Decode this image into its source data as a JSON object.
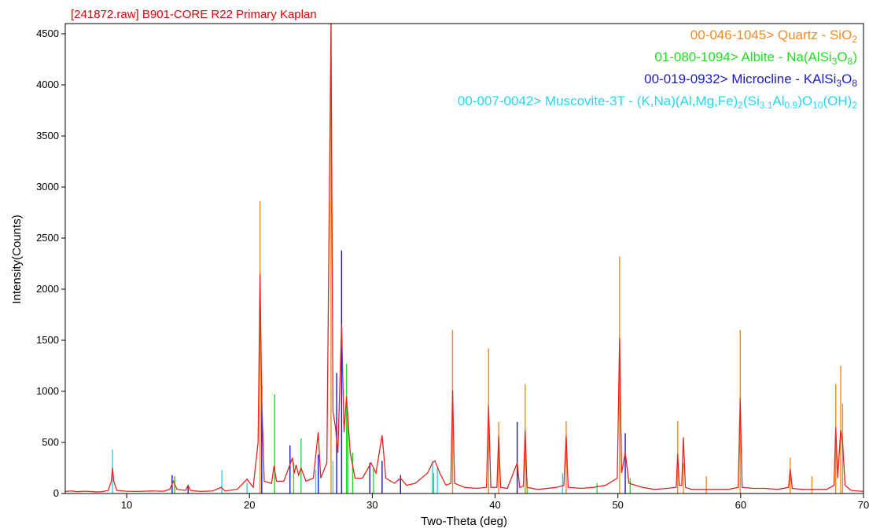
{
  "chart_data": {
    "type": "line",
    "title": "[241872.raw] B901-CORE R22 Primary Kaplan",
    "title_color": "#e00000",
    "x_label": "Two-Theta (deg)",
    "y_label": "Intensity(Counts)",
    "xlim": [
      5,
      70
    ],
    "ylim": [
      0,
      4600
    ],
    "xticks": [
      10,
      20,
      30,
      40,
      50,
      60,
      70
    ],
    "yticks": [
      0,
      500,
      1000,
      1500,
      2000,
      2500,
      3000,
      3500,
      4000,
      4500
    ],
    "series": [
      {
        "style": "line",
        "color": "#e8231e",
        "x": [
          5,
          5.5,
          6,
          6.5,
          7,
          7.5,
          8,
          8.5,
          8.75,
          8.85,
          8.95,
          9.2,
          10,
          11,
          12,
          13,
          13.5,
          13.8,
          14.1,
          14.8,
          15,
          15.2,
          16,
          17,
          17.7,
          18,
          19,
          19.8,
          20.3,
          20.7,
          20.86,
          21.0,
          21.2,
          21.8,
          22.0,
          22.2,
          22.8,
          23.5,
          23.65,
          23.8,
          24.0,
          24.2,
          24.6,
          25.2,
          25.6,
          25.8,
          26.3,
          26.64,
          26.8,
          27.0,
          27.2,
          27.5,
          27.7,
          27.9,
          28.2,
          28.6,
          29.2,
          29.9,
          30.3,
          30.8,
          31.1,
          31.8,
          32.3,
          32.8,
          33.5,
          34.5,
          34.9,
          35.1,
          35.5,
          36.0,
          36.4,
          36.54,
          36.7,
          37.5,
          38.5,
          39.3,
          39.47,
          39.65,
          40.15,
          40.29,
          40.45,
          41,
          41.8,
          42,
          42.3,
          42.45,
          42.6,
          43.5,
          45,
          45.6,
          45.79,
          45.95,
          47,
          48,
          49,
          49.95,
          50.14,
          50.3,
          50.6,
          50.9,
          52,
          53,
          54,
          54.75,
          54.87,
          55.0,
          55.2,
          55.33,
          55.5,
          56,
          57,
          58,
          59,
          59.8,
          59.96,
          60.12,
          61,
          62,
          63,
          63.9,
          64.03,
          64.2,
          65,
          66,
          67,
          67.6,
          67.74,
          67.9,
          68.14,
          68.3,
          68.5,
          69,
          70
        ],
        "values": [
          20,
          25,
          18,
          22,
          20,
          15,
          18,
          30,
          120,
          250,
          120,
          30,
          22,
          20,
          25,
          22,
          40,
          120,
          40,
          30,
          80,
          30,
          20,
          25,
          60,
          25,
          40,
          140,
          60,
          500,
          2150,
          900,
          120,
          100,
          270,
          120,
          120,
          350,
          200,
          280,
          180,
          250,
          120,
          150,
          600,
          150,
          300,
          4600,
          800,
          650,
          400,
          1650,
          600,
          950,
          400,
          150,
          150,
          300,
          200,
          570,
          150,
          100,
          150,
          80,
          100,
          200,
          300,
          320,
          200,
          80,
          100,
          1010,
          100,
          60,
          50,
          60,
          860,
          60,
          60,
          560,
          60,
          50,
          300,
          60,
          70,
          620,
          60,
          40,
          60,
          80,
          560,
          60,
          50,
          60,
          80,
          150,
          1520,
          200,
          400,
          100,
          60,
          40,
          50,
          60,
          390,
          80,
          80,
          550,
          60,
          40,
          40,
          40,
          40,
          60,
          930,
          60,
          50,
          50,
          40,
          60,
          240,
          50,
          40,
          40,
          40,
          80,
          650,
          150,
          620,
          500,
          80,
          30,
          20
        ]
      },
      {
        "style": "stick",
        "color": "#f28a1e",
        "name": [
          {
            "text": "00-046-1045> Quartz - SiO",
            "sub": false
          },
          {
            "text": "2",
            "sub": true
          }
        ],
        "x": [
          20.86,
          26.64,
          36.54,
          39.47,
          40.29,
          42.45,
          45.79,
          50.14,
          54.87,
          55.33,
          57.2,
          59.96,
          64.03,
          65.8,
          67.74,
          68.14,
          68.3
        ],
        "values": [
          2860,
          4600,
          1600,
          1420,
          700,
          1070,
          710,
          2320,
          710,
          300,
          170,
          1600,
          350,
          170,
          1070,
          1250,
          880
        ]
      },
      {
        "style": "stick",
        "color": "#22dd22",
        "name": [
          {
            "text": "01-080-1094> Albite - Na(AlSi",
            "sub": false
          },
          {
            "text": "3",
            "sub": true
          },
          {
            "text": "O",
            "sub": false
          },
          {
            "text": "8",
            "sub": true
          },
          {
            "text": ")",
            "sub": false
          }
        ],
        "x": [
          13.9,
          22.05,
          23.6,
          24.2,
          27.9,
          28.0,
          28.4,
          30.1,
          35.0,
          42.6,
          48.3,
          51.0
        ],
        "values": [
          170,
          970,
          300,
          540,
          1270,
          800,
          400,
          250,
          200,
          150,
          100,
          150
        ]
      },
      {
        "style": "stick",
        "color": "#1a1acc",
        "name": [
          {
            "text": "00-019-0932> Microcline - KAlSi",
            "sub": false
          },
          {
            "text": "3",
            "sub": true
          },
          {
            "text": "O",
            "sub": false
          },
          {
            "text": "8",
            "sub": true
          }
        ],
        "x": [
          13.7,
          15.0,
          21.0,
          23.3,
          25.6,
          27.1,
          27.5,
          29.8,
          30.8,
          32.3,
          41.8,
          50.6
        ],
        "values": [
          180,
          80,
          1060,
          470,
          380,
          1180,
          2380,
          300,
          320,
          180,
          700,
          590
        ]
      },
      {
        "style": "stick",
        "color": "#22d8ee",
        "name": [
          {
            "text": "00-007-0042> Muscovite-3T - (K,Na)(Al,Mg,Fe)",
            "sub": false
          },
          {
            "text": "2",
            "sub": true
          },
          {
            "text": "(Si",
            "sub": false
          },
          {
            "text": "3.1",
            "sub": true
          },
          {
            "text": "Al",
            "sub": false
          },
          {
            "text": "0.9",
            "sub": true
          },
          {
            "text": ")O",
            "sub": false
          },
          {
            "text": "10",
            "sub": true
          },
          {
            "text": "(OH)",
            "sub": false
          },
          {
            "text": "2",
            "sub": true
          }
        ],
        "x": [
          8.85,
          17.75,
          19.8,
          25.4,
          26.8,
          34.9,
          35.3,
          45.5
        ],
        "values": [
          430,
          230,
          100,
          230,
          320,
          320,
          250,
          200
        ]
      }
    ]
  }
}
